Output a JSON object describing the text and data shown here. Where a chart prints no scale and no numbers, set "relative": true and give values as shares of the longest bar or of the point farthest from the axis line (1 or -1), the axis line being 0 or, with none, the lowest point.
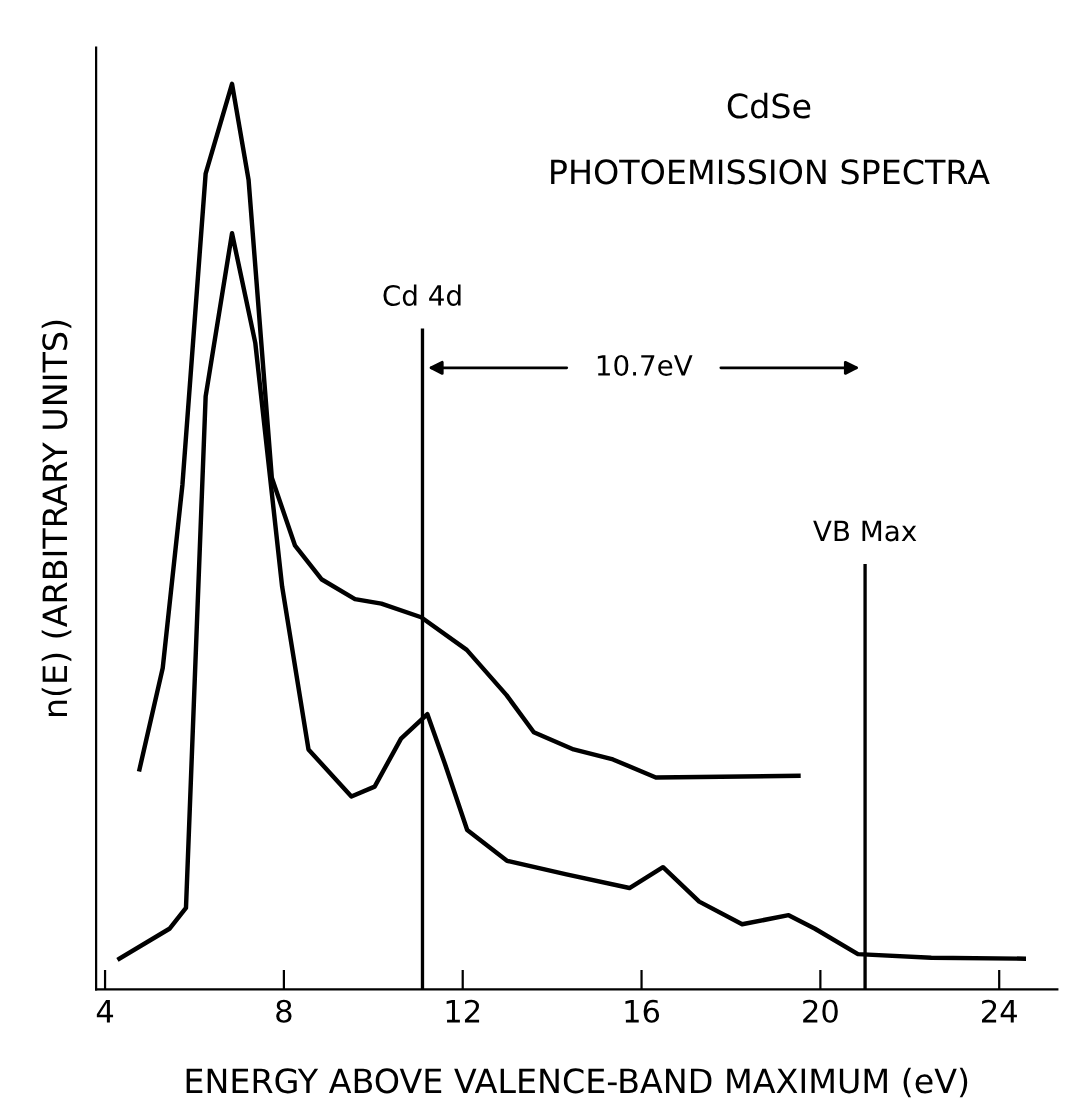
{
  "chart_data": {
    "type": "line",
    "title": "CdSe",
    "subtitle": "PHOTOEMISSION SPECTRA",
    "xlabel": "ENERGY ABOVE VALENCE-BAND MAXIMUM (eV)",
    "ylabel": "n(E) (ARBITRARY UNITS)",
    "relative": true,
    "xlim": [
      3.8,
      25.3
    ],
    "xticks": [
      4,
      8,
      12,
      16,
      20,
      24
    ],
    "grid": false,
    "legend": false,
    "marker": "none",
    "line_style": "solid",
    "series": [
      {
        "color": "#000000",
        "x": [
          4.77,
          5.29,
          5.73,
          6.25,
          6.84,
          7.21,
          7.73,
          8.25,
          8.84,
          9.59,
          10.18,
          11.07,
          12.09,
          12.98,
          13.59,
          14.48,
          15.36,
          16.32,
          19.51
        ],
        "values": [
          0.243,
          0.355,
          0.557,
          0.901,
          1.0,
          0.894,
          0.565,
          0.49,
          0.453,
          0.431,
          0.426,
          0.411,
          0.375,
          0.325,
          0.284,
          0.265,
          0.254,
          0.234,
          0.236
        ]
      },
      {
        "color": "#000000",
        "x": [
          4.32,
          5.44,
          5.81,
          6.25,
          6.84,
          7.36,
          7.96,
          8.55,
          9.51,
          10.03,
          10.62,
          11.21,
          11.59,
          12.1,
          12.99,
          14.32,
          15.73,
          16.48,
          17.29,
          18.25,
          19.29,
          19.88,
          20.84,
          22.48,
          24.55
        ],
        "values": [
          0.034,
          0.067,
          0.09,
          0.655,
          0.835,
          0.714,
          0.445,
          0.265,
          0.213,
          0.224,
          0.277,
          0.304,
          0.251,
          0.176,
          0.142,
          0.127,
          0.112,
          0.135,
          0.097,
          0.072,
          0.082,
          0.067,
          0.039,
          0.035,
          0.034
        ]
      }
    ],
    "ref_lines": [
      {
        "axis": "x",
        "value": 11.1,
        "label": "Cd 4d",
        "color": "#000000"
      },
      {
        "axis": "x",
        "value": 21.0,
        "label": "VB Max",
        "color": "#000000"
      }
    ],
    "annotations": [
      "10.7eV"
    ]
  }
}
